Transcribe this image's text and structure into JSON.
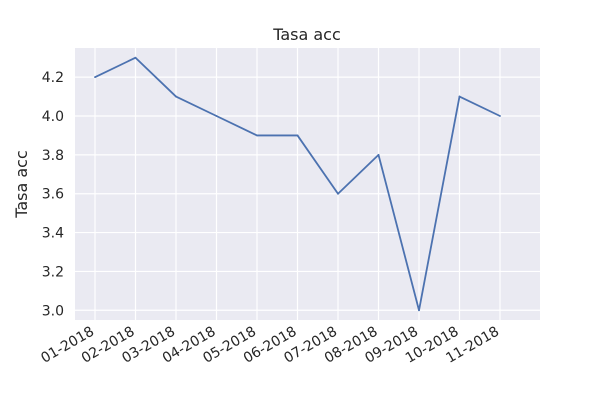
{
  "chart_data": {
    "type": "line",
    "title": "Tasa acc",
    "xlabel": "",
    "ylabel": "Tasa acc",
    "categories": [
      "01-2018",
      "02-2018",
      "03-2018",
      "04-2018",
      "05-2018",
      "06-2018",
      "07-2018",
      "08-2018",
      "09-2018",
      "10-2018",
      "11-2018"
    ],
    "y_ticks": [
      "3.0",
      "3.2",
      "3.4",
      "3.6",
      "3.8",
      "4.0",
      "4.2"
    ],
    "ylim": [
      2.95,
      4.35
    ],
    "grid": true,
    "series": [
      {
        "values": [
          4.2,
          4.3,
          4.1,
          4.0,
          3.9,
          3.9,
          3.6,
          3.8,
          3.0,
          4.1,
          4.0
        ]
      }
    ],
    "colors": {
      "background": "#eaeaf2",
      "grid": "#ffffff",
      "line": "#4c72b0"
    }
  }
}
